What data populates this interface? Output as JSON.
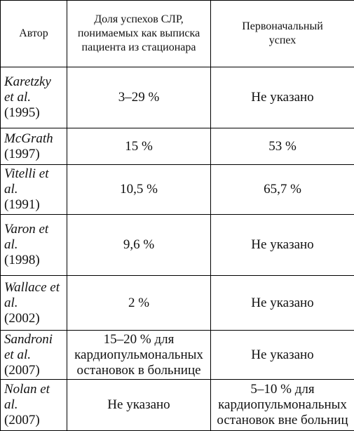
{
  "table": {
    "header": [
      "Автор",
      "Доля успехов СЛР, понимаемых как выписка пациента из стационара",
      "Первоначальный успех"
    ],
    "rows": [
      {
        "author": "Karetzky et al.",
        "year": "(1995)",
        "discharge": "3–29 %",
        "initial": "Не указано"
      },
      {
        "author": "McGrath",
        "year": "(1997)",
        "discharge": "15 %",
        "initial": "53 %"
      },
      {
        "author": "Vitelli et al.",
        "year": "(1991)",
        "discharge": "10,5 %",
        "initial": "65,7 %"
      },
      {
        "author": "Varon et al.",
        "year": "(1998)",
        "discharge": "9,6 %",
        "initial": "Не указано"
      },
      {
        "author": "Wallace et al.",
        "year": "(2002)",
        "discharge": "2 %",
        "initial": "Не указано"
      },
      {
        "author": "Sandroni et al.",
        "year": "(2007)",
        "discharge": "15–20 % для кардиопульмональных остановок в больнице",
        "initial": "Не указано"
      },
      {
        "author": "Nolan et al.",
        "year": "(2007)",
        "discharge": "Не указано",
        "initial": "5–10 % для кардиопульмональных остановок вне больниц"
      }
    ]
  }
}
